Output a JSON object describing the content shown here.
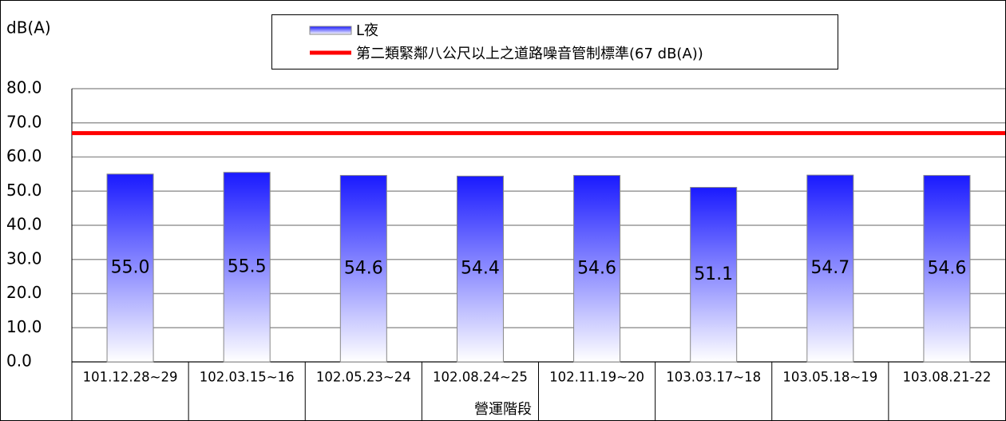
{
  "chart_data": {
    "type": "bar",
    "ylabel": "dB(A)",
    "xlabel": "營運階段",
    "categories": [
      "101.12.28~29",
      "102.03.15~16",
      "102.05.23~24",
      "102.08.24~25",
      "102.11.19~20",
      "103.03.17~18",
      "103.05.18~19",
      "103.08.21-22"
    ],
    "series": [
      {
        "name": "L夜",
        "color": "#1a1aff",
        "values": [
          55.0,
          55.5,
          54.6,
          54.4,
          54.6,
          51.1,
          54.7,
          54.6
        ],
        "value_labels": [
          "55.0",
          "55.5",
          "54.6",
          "54.4",
          "54.6",
          "51.1",
          "54.7",
          "54.6"
        ]
      }
    ],
    "reference_lines": [
      {
        "name": "第二類緊鄰八公尺以上之道路噪音管制標準(67 dB(A))",
        "value": 67,
        "color": "#ff0000"
      }
    ],
    "ylim": [
      0,
      80
    ],
    "yticks": [
      {
        "value": 0,
        "label": "0.0"
      },
      {
        "value": 10,
        "label": "10.0"
      },
      {
        "value": 20,
        "label": "20.0"
      },
      {
        "value": 30,
        "label": "30.0"
      },
      {
        "value": 40,
        "label": "40.0"
      },
      {
        "value": 50,
        "label": "50.0"
      },
      {
        "value": 60,
        "label": "60.0"
      },
      {
        "value": 70,
        "label": "70.0"
      },
      {
        "value": 80,
        "label": "80.0"
      }
    ],
    "grid": true
  }
}
